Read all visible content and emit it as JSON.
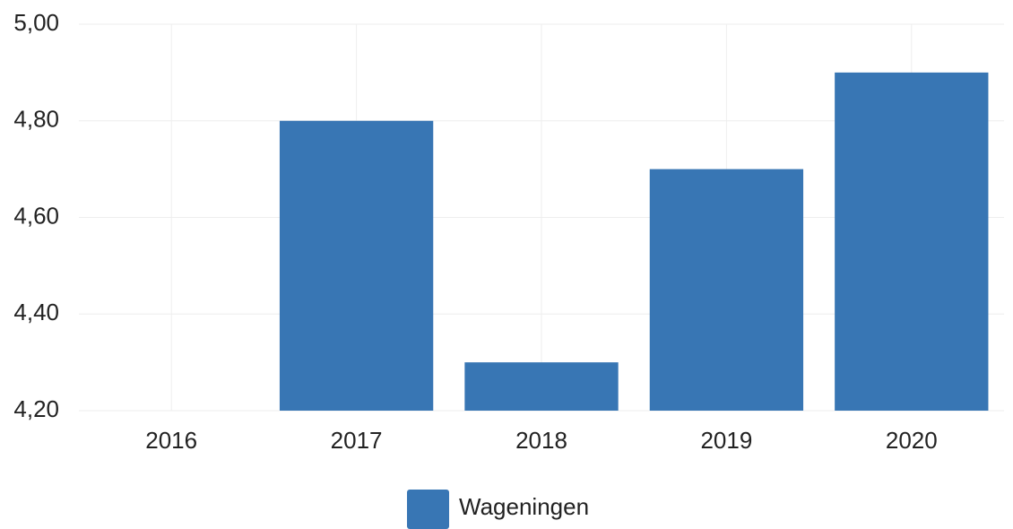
{
  "chart_data": {
    "type": "bar",
    "categories": [
      "2016",
      "2017",
      "2018",
      "2019",
      "2020"
    ],
    "series": [
      {
        "name": "Wageningen",
        "color": "#3876b4",
        "values": [
          null,
          4.8,
          4.3,
          4.7,
          4.9
        ]
      }
    ],
    "ylim": [
      4.2,
      5.0
    ],
    "yticks": [
      {
        "value": 4.2,
        "label": "4,20"
      },
      {
        "value": 4.4,
        "label": "4,40"
      },
      {
        "value": 4.6,
        "label": "4,60"
      },
      {
        "value": 4.8,
        "label": "4,80"
      },
      {
        "value": 5.0,
        "label": "5,00"
      }
    ],
    "grid": true,
    "legend": "bottom"
  }
}
